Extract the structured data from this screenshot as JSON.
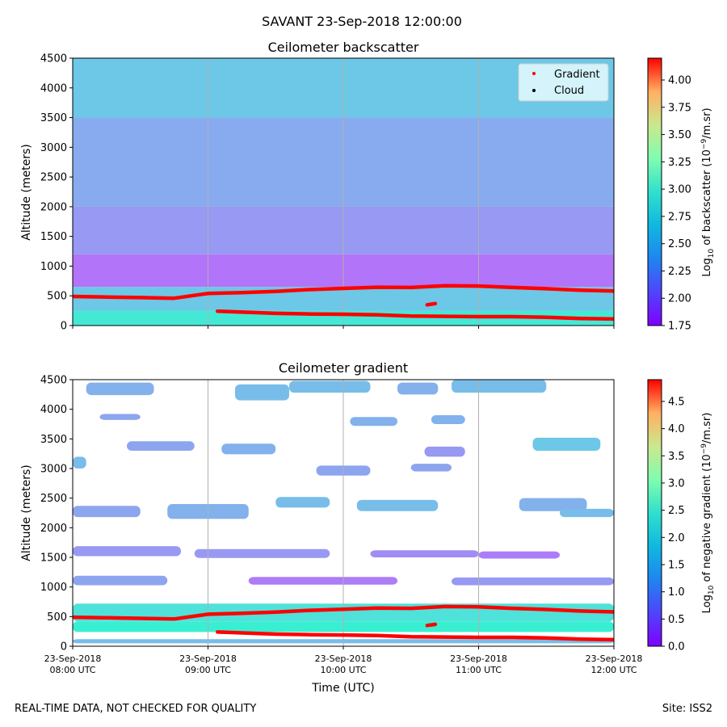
{
  "figure": {
    "suptitle": "SAVANT 23-Sep-2018 12:00:00",
    "footer_left": "REAL-TIME DATA, NOT CHECKED FOR QUALITY",
    "footer_right": "Site: ISS2"
  },
  "chart_data": [
    {
      "type": "heatmap",
      "title": "Ceilometer backscatter",
      "ylabel": "Altitude (meters)",
      "xlabel": "",
      "x_range_hours_utc": [
        8,
        12
      ],
      "ylim": [
        0,
        4500
      ],
      "y_ticks": [
        0,
        500,
        1000,
        1500,
        2000,
        2500,
        3000,
        3500,
        4000,
        4500
      ],
      "x_tick_positions_utc": [
        8,
        9,
        10,
        11,
        12
      ],
      "grid": "vertical lines at x ticks",
      "colorbar": {
        "label_prefix": "Log",
        "label_sub": "10",
        "label_mid": " of backscatter (10",
        "label_sup": "−9",
        "label_suffix": "/m.sr)",
        "range": [
          1.75,
          4.2
        ],
        "ticks": [
          "1.75",
          "2.00",
          "2.25",
          "2.50",
          "2.75",
          "3.00",
          "3.25",
          "3.50",
          "3.75",
          "4.00"
        ]
      },
      "colormap": "rainbow",
      "legend": {
        "placement": "upper-right",
        "entries": [
          {
            "name": "Gradient",
            "color": "#ff0000"
          },
          {
            "name": "Cloud",
            "color": "#000000"
          }
        ]
      },
      "field_bands_altitude_m": [
        {
          "from": 0,
          "to": 250,
          "value": 2.65
        },
        {
          "from": 250,
          "to": 650,
          "value": 2.45
        },
        {
          "from": 650,
          "to": 1200,
          "value": 2.12
        },
        {
          "from": 1200,
          "to": 2000,
          "value": 2.25
        },
        {
          "from": 2000,
          "to": 3500,
          "value": 2.32
        },
        {
          "from": 3500,
          "to": 4500,
          "value": 2.45
        }
      ],
      "series": [
        {
          "name": "Gradient",
          "color": "#ff0000",
          "x": [
            8.0,
            8.25,
            8.5,
            8.75,
            9.0,
            9.25,
            9.5,
            9.75,
            10.0,
            10.25,
            10.5,
            10.75,
            11.0,
            11.25,
            11.5,
            11.75,
            12.0
          ],
          "y": [
            490,
            480,
            470,
            460,
            540,
            555,
            575,
            605,
            625,
            645,
            640,
            670,
            665,
            640,
            620,
            595,
            580
          ]
        },
        {
          "name": "Gradient",
          "color": "#ff0000",
          "x": [
            9.07,
            9.25,
            9.5,
            9.75,
            10.0,
            10.25,
            10.5,
            10.75,
            11.0,
            11.25,
            11.5,
            11.75,
            12.0
          ],
          "y": [
            240,
            225,
            205,
            195,
            190,
            180,
            160,
            155,
            150,
            150,
            140,
            120,
            110
          ]
        },
        {
          "name": "Gradient",
          "color": "#ff0000",
          "x": [
            10.62,
            10.68
          ],
          "y": [
            350,
            370
          ]
        }
      ]
    },
    {
      "type": "heatmap",
      "title": "Ceilometer gradient",
      "ylabel": "Altitude (meters)",
      "xlabel": "Time (UTC)",
      "x_range_hours_utc": [
        8,
        12
      ],
      "ylim": [
        0,
        4500
      ],
      "y_ticks": [
        0,
        500,
        1000,
        1500,
        2000,
        2500,
        3000,
        3500,
        4000,
        4500
      ],
      "x_tick_positions_utc": [
        8,
        9,
        10,
        11,
        12
      ],
      "x_tick_labels": [
        [
          "23-Sep-2018",
          "08:00 UTC"
        ],
        [
          "23-Sep-2018",
          "09:00 UTC"
        ],
        [
          "23-Sep-2018",
          "10:00 UTC"
        ],
        [
          "23-Sep-2018",
          "11:00 UTC"
        ],
        [
          "23-Sep-2018",
          "12:00 UTC"
        ]
      ],
      "grid": "vertical lines at x ticks",
      "colorbar": {
        "label_prefix": "Log",
        "label_sub": "10",
        "label_mid": " of negative gradient (10",
        "label_sup": "−9",
        "label_suffix": "/m.sr)",
        "range": [
          0,
          4.9
        ],
        "ticks": [
          "0.0",
          "0.5",
          "1.0",
          "1.5",
          "2.0",
          "2.5",
          "3.0",
          "3.5",
          "4.0",
          "4.5"
        ]
      },
      "colormap": "rainbow",
      "layers_altitude_m": [
        {
          "x0": 8.0,
          "x1": 12.0,
          "y0": 50,
          "y1": 120,
          "value": 1.3
        },
        {
          "x0": 8.0,
          "x1": 12.0,
          "y0": 240,
          "y1": 420,
          "value": 1.9
        },
        {
          "x0": 8.0,
          "x1": 12.0,
          "y0": 420,
          "y1": 720,
          "value": 1.7
        },
        {
          "x0": 8.0,
          "x1": 8.7,
          "y0": 1030,
          "y1": 1190,
          "value": 1.1
        },
        {
          "x0": 9.3,
          "x1": 10.4,
          "y0": 1040,
          "y1": 1170,
          "value": 0.8
        },
        {
          "x0": 10.8,
          "x1": 12.0,
          "y0": 1030,
          "y1": 1160,
          "value": 1.0
        },
        {
          "x0": 8.0,
          "x1": 8.8,
          "y0": 1520,
          "y1": 1690,
          "value": 1.0
        },
        {
          "x0": 8.9,
          "x1": 9.9,
          "y0": 1490,
          "y1": 1640,
          "value": 1.0
        },
        {
          "x0": 10.2,
          "x1": 11.0,
          "y0": 1500,
          "y1": 1620,
          "value": 0.9
        },
        {
          "x0": 11.0,
          "x1": 11.6,
          "y0": 1480,
          "y1": 1600,
          "value": 0.8
        },
        {
          "x0": 8.0,
          "x1": 8.5,
          "y0": 2180,
          "y1": 2370,
          "value": 1.1
        },
        {
          "x0": 8.7,
          "x1": 9.3,
          "y0": 2150,
          "y1": 2400,
          "value": 1.2
        },
        {
          "x0": 9.5,
          "x1": 9.9,
          "y0": 2340,
          "y1": 2520,
          "value": 1.3
        },
        {
          "x0": 10.1,
          "x1": 10.7,
          "y0": 2280,
          "y1": 2470,
          "value": 1.3
        },
        {
          "x0": 11.3,
          "x1": 11.8,
          "y0": 2280,
          "y1": 2500,
          "value": 1.2
        },
        {
          "x0": 11.6,
          "x1": 12.0,
          "y0": 2180,
          "y1": 2320,
          "value": 1.3
        },
        {
          "x0": 8.4,
          "x1": 8.9,
          "y0": 3300,
          "y1": 3460,
          "value": 1.1
        },
        {
          "x0": 9.1,
          "x1": 9.5,
          "y0": 3240,
          "y1": 3420,
          "value": 1.2
        },
        {
          "x0": 10.6,
          "x1": 10.9,
          "y0": 3200,
          "y1": 3370,
          "value": 1.0
        },
        {
          "x0": 11.4,
          "x1": 11.9,
          "y0": 3300,
          "y1": 3520,
          "value": 1.4
        },
        {
          "x0": 8.0,
          "x1": 8.1,
          "y0": 3000,
          "y1": 3200,
          "value": 1.3
        },
        {
          "x0": 8.1,
          "x1": 8.6,
          "y0": 4240,
          "y1": 4450,
          "value": 1.2
        },
        {
          "x0": 9.2,
          "x1": 9.6,
          "y0": 4150,
          "y1": 4420,
          "value": 1.3
        },
        {
          "x0": 9.6,
          "x1": 10.2,
          "y0": 4280,
          "y1": 4480,
          "value": 1.3
        },
        {
          "x0": 10.4,
          "x1": 10.7,
          "y0": 4250,
          "y1": 4450,
          "value": 1.2
        },
        {
          "x0": 10.8,
          "x1": 11.5,
          "y0": 4280,
          "y1": 4500,
          "value": 1.3
        },
        {
          "x0": 8.2,
          "x1": 8.5,
          "y0": 3820,
          "y1": 3920,
          "value": 1.1
        },
        {
          "x0": 10.05,
          "x1": 10.4,
          "y0": 3720,
          "y1": 3870,
          "value": 1.2
        },
        {
          "x0": 10.65,
          "x1": 10.9,
          "y0": 3750,
          "y1": 3900,
          "value": 1.2
        },
        {
          "x0": 9.8,
          "x1": 10.2,
          "y0": 2880,
          "y1": 3050,
          "value": 1.1
        },
        {
          "x0": 10.5,
          "x1": 10.8,
          "y0": 2950,
          "y1": 3080,
          "value": 1.1
        }
      ],
      "series": [
        {
          "name": "Gradient",
          "color": "#ff0000",
          "x": [
            8.0,
            8.25,
            8.5,
            8.75,
            9.0,
            9.25,
            9.5,
            9.75,
            10.0,
            10.25,
            10.5,
            10.75,
            11.0,
            11.25,
            11.5,
            11.75,
            12.0
          ],
          "y": [
            490,
            480,
            470,
            460,
            540,
            555,
            575,
            605,
            625,
            645,
            640,
            670,
            665,
            640,
            620,
            595,
            580
          ]
        },
        {
          "name": "Gradient",
          "color": "#ff0000",
          "x": [
            9.07,
            9.25,
            9.5,
            9.75,
            10.0,
            10.25,
            10.5,
            10.75,
            11.0,
            11.25,
            11.5,
            11.75,
            12.0
          ],
          "y": [
            240,
            225,
            205,
            195,
            190,
            180,
            160,
            155,
            150,
            150,
            140,
            120,
            110
          ]
        },
        {
          "name": "Gradient",
          "color": "#ff0000",
          "x": [
            10.62,
            10.68
          ],
          "y": [
            350,
            370
          ]
        }
      ]
    }
  ]
}
